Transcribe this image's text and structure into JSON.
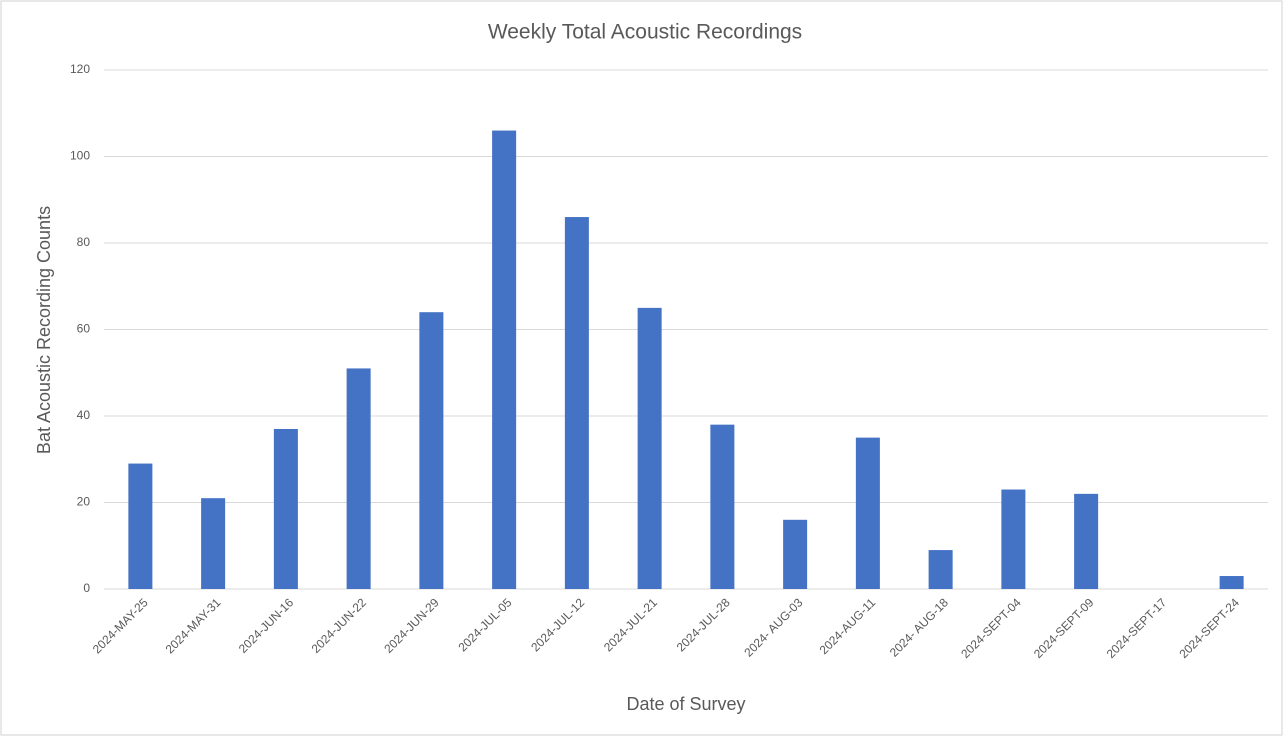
{
  "chart_data": {
    "type": "bar",
    "title": "Weekly Total Acoustic Recordings",
    "x_label": "Date of Survey",
    "y_label": "Bat Acoustic Recording Counts",
    "categories": [
      "2024-MAY-25",
      "2024-MAY-31",
      "2024-JUN-16",
      "2024-JUN-22",
      "2024-JUN-29",
      "2024-JUL-05",
      "2024-JUL-12",
      "2024-JUL-21",
      "2024-JUL-28",
      "2024- AUG-03",
      "2024-AUG-11",
      "2024- AUG-18",
      "2024-SEPT-04",
      "2024-SEPT-09",
      "2024-SEPT-17",
      "2024-SEPT-24"
    ],
    "values": [
      29,
      21,
      37,
      51,
      64,
      106,
      86,
      65,
      38,
      16,
      35,
      9,
      23,
      22,
      0,
      3
    ],
    "color": "#4472c4",
    "ylim": [
      0,
      120
    ],
    "yticks": [
      0,
      20,
      40,
      60,
      80,
      100,
      120
    ],
    "grid": true
  }
}
